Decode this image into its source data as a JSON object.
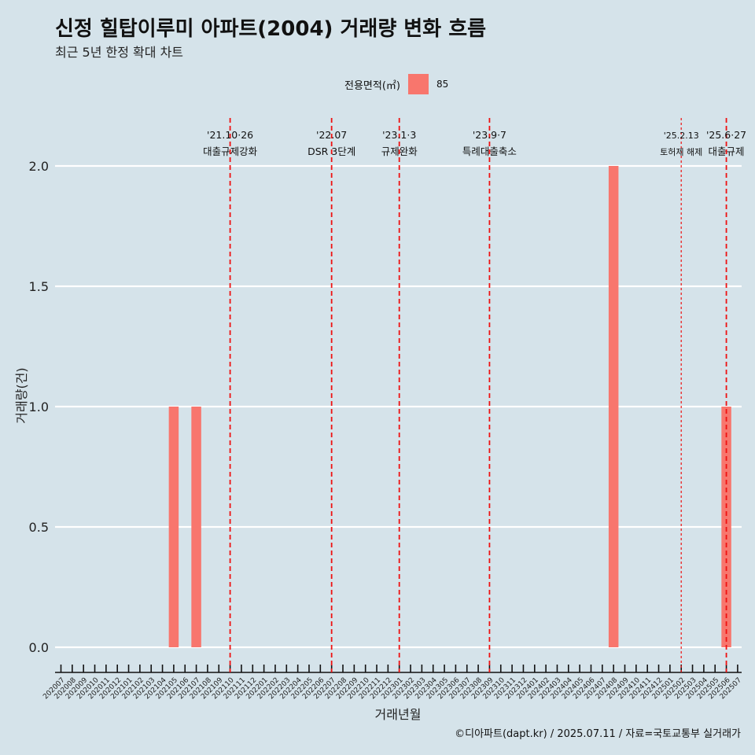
{
  "header": {
    "title": "신정 힐탑이루미 아파트(2004) 거래량 변화 흐름",
    "subtitle": "최근 5년 한정 확대 차트"
  },
  "legend": {
    "title": "전용면적(㎡)",
    "items": [
      {
        "label": "85",
        "color": "#f8766d"
      }
    ]
  },
  "caption": "©디아파트(dapt.kr) / 2025.07.11 / 자료=국토교통부 실거래가",
  "colors": {
    "background": "#d5e3ea",
    "bar": "#f8766d",
    "event_line": "#ee1111",
    "grid": "#ffffff"
  },
  "chart_data": {
    "type": "bar",
    "xlabel": "거래년월",
    "ylabel": "거래량(건)",
    "ylim": [
      0,
      2
    ],
    "y_ticks": [
      "0.0",
      "0.5",
      "1.0",
      "1.5",
      "2.0"
    ],
    "grid": true,
    "legend_position": "top",
    "categories": [
      "202007",
      "202008",
      "202009",
      "202010",
      "202011",
      "202012",
      "202101",
      "202102",
      "202103",
      "202104",
      "202105",
      "202106",
      "202107",
      "202108",
      "202109",
      "202110",
      "202111",
      "202112",
      "202201",
      "202202",
      "202203",
      "202204",
      "202205",
      "202206",
      "202207",
      "202208",
      "202209",
      "202210",
      "202211",
      "202212",
      "202301",
      "202302",
      "202303",
      "202304",
      "202305",
      "202306",
      "202307",
      "202308",
      "202309",
      "202310",
      "202311",
      "202312",
      "202401",
      "202402",
      "202403",
      "202404",
      "202405",
      "202406",
      "202407",
      "202408",
      "202409",
      "202410",
      "202411",
      "202412",
      "202501",
      "202502",
      "202503",
      "202504",
      "202505",
      "202506",
      "202507"
    ],
    "series": [
      {
        "name": "85",
        "values": [
          0,
          0,
          0,
          0,
          0,
          0,
          0,
          0,
          0,
          0,
          1,
          0,
          1,
          0,
          0,
          0,
          0,
          0,
          0,
          0,
          0,
          0,
          0,
          0,
          0,
          0,
          0,
          0,
          0,
          0,
          0,
          0,
          0,
          0,
          0,
          0,
          0,
          0,
          0,
          0,
          0,
          0,
          0,
          0,
          0,
          0,
          0,
          0,
          0,
          2,
          0,
          0,
          0,
          0,
          0,
          0,
          0,
          0,
          0,
          1,
          0
        ]
      }
    ],
    "events": [
      {
        "x": "202110",
        "date": "'21.10·26",
        "label": "대출규제강화",
        "style": "dashed"
      },
      {
        "x": "202207",
        "date": "'22.07",
        "label": "DSR 3단계",
        "style": "dashed"
      },
      {
        "x": "202301",
        "date": "'23.1·3",
        "label": "규제완화",
        "style": "dashed"
      },
      {
        "x": "202309",
        "date": "'23.9·7",
        "label": "특례대출축소",
        "style": "dashed"
      },
      {
        "x": "202502",
        "date": "'25.2.13",
        "label": "토허제 해제",
        "style": "dotted"
      },
      {
        "x": "202506",
        "date": "'25.6·27",
        "label": "대출규제",
        "style": "dashed"
      }
    ]
  }
}
